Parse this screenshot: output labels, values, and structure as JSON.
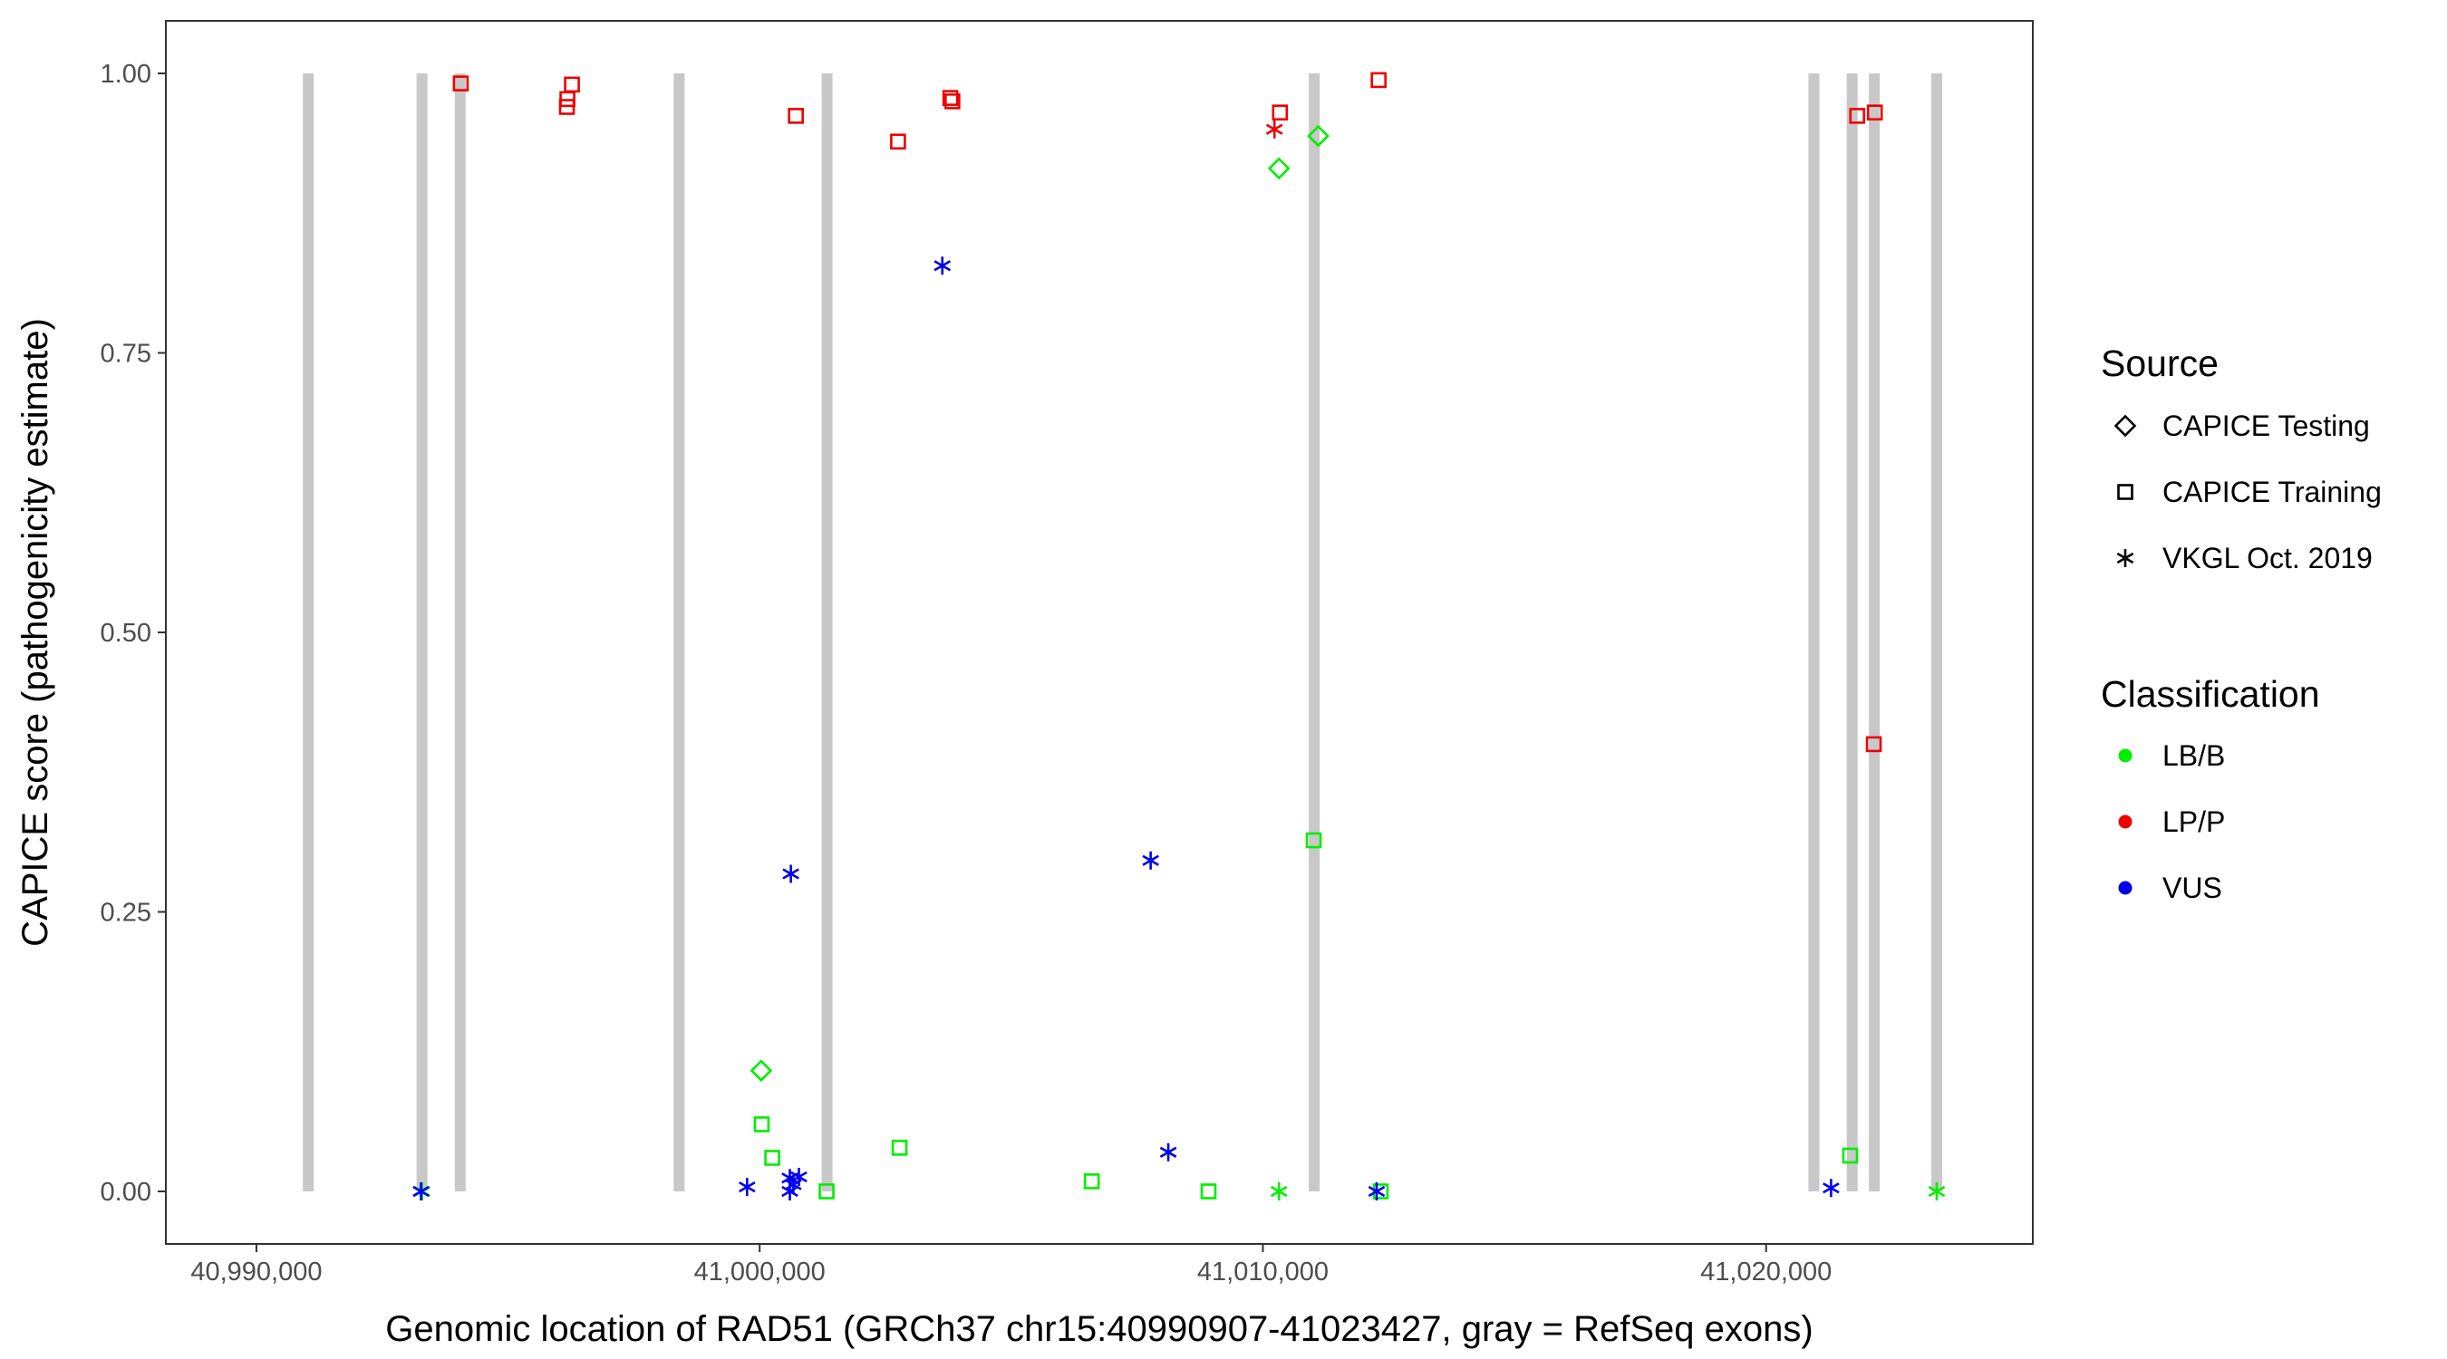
{
  "chart_data": {
    "type": "scatter",
    "title": "",
    "xlabel": "Genomic location of RAD51 (GRCh37 chr15:40990907-41023427, gray = RefSeq exons)",
    "ylabel": "CAPICE score (pathogenicity estimate)",
    "xlim": [
      40988200,
      41025300
    ],
    "ylim": [
      -0.047,
      1.047
    ],
    "x_ticks": [
      40990000,
      41000000,
      41010000,
      41020000
    ],
    "x_tick_labels": [
      "40,990,000",
      "41,000,000",
      "41,010,000",
      "41,020,000"
    ],
    "y_ticks": [
      0.0,
      0.25,
      0.5,
      0.75,
      1.0
    ],
    "y_tick_labels": [
      "0.00",
      "0.25",
      "0.50",
      "0.75",
      "1.00"
    ],
    "grid": false,
    "legend_position": "right",
    "exons": [
      40991030,
      40993290,
      40994050,
      40998400,
      41001340,
      41011020,
      41020950,
      41021710,
      41022150,
      41023390
    ],
    "exon_ymax": 1.0,
    "shape_legend": {
      "title": "Source",
      "items": [
        {
          "label": "CAPICE Testing",
          "shape": "diamond"
        },
        {
          "label": "CAPICE Training",
          "shape": "square"
        },
        {
          "label": "VKGL Oct. 2019",
          "shape": "asterisk"
        }
      ]
    },
    "color_legend": {
      "title": "Classification",
      "items": [
        {
          "label": "LB/B",
          "color": "#00ee00"
        },
        {
          "label": "LP/P",
          "color": "#ee0000"
        },
        {
          "label": "VUS",
          "color": "#0000ee"
        }
      ]
    },
    "series": [
      {
        "shape": "square",
        "classification": "LP/P",
        "points": [
          [
            40994060,
            0.991
          ],
          [
            40996270,
            0.99
          ],
          [
            40996180,
            0.977
          ],
          [
            40996170,
            0.97
          ],
          [
            41000720,
            0.962
          ],
          [
            41002750,
            0.939
          ],
          [
            41003790,
            0.978
          ],
          [
            41003830,
            0.975
          ],
          [
            41010340,
            0.965
          ],
          [
            41012300,
            0.994
          ],
          [
            41021810,
            0.962
          ],
          [
            41022160,
            0.965
          ],
          [
            41022140,
            0.4
          ]
        ]
      },
      {
        "shape": "asterisk",
        "classification": "LP/P",
        "points": [
          [
            41010230,
            0.95
          ]
        ]
      },
      {
        "shape": "diamond",
        "classification": "LB/B",
        "points": [
          [
            41011100,
            0.944
          ],
          [
            41010320,
            0.915
          ],
          [
            41000030,
            0.108
          ]
        ]
      },
      {
        "shape": "square",
        "classification": "LB/B",
        "points": [
          [
            41000040,
            0.06
          ],
          [
            41000250,
            0.03
          ],
          [
            41001330,
            0.0
          ],
          [
            41002780,
            0.039
          ],
          [
            41006600,
            0.009
          ],
          [
            41008920,
            0.0
          ],
          [
            41011010,
            0.314
          ],
          [
            41012340,
            0.0
          ],
          [
            41021670,
            0.032
          ]
        ]
      },
      {
        "shape": "asterisk",
        "classification": "LB/B",
        "points": [
          [
            41010320,
            0.0
          ],
          [
            41023390,
            0.0
          ],
          [
            40993290,
            0.0
          ]
        ]
      },
      {
        "shape": "asterisk",
        "classification": "VUS",
        "points": [
          [
            41003630,
            0.828
          ],
          [
            41000620,
            0.284
          ],
          [
            41007770,
            0.296
          ],
          [
            41008120,
            0.035
          ],
          [
            40993270,
            0.0
          ],
          [
            40999750,
            0.004
          ],
          [
            41000600,
            0.012
          ],
          [
            41000780,
            0.013
          ],
          [
            41000670,
            0.006
          ],
          [
            41000600,
            0.0
          ],
          [
            41012260,
            0.0
          ],
          [
            41021290,
            0.003
          ]
        ]
      }
    ]
  }
}
